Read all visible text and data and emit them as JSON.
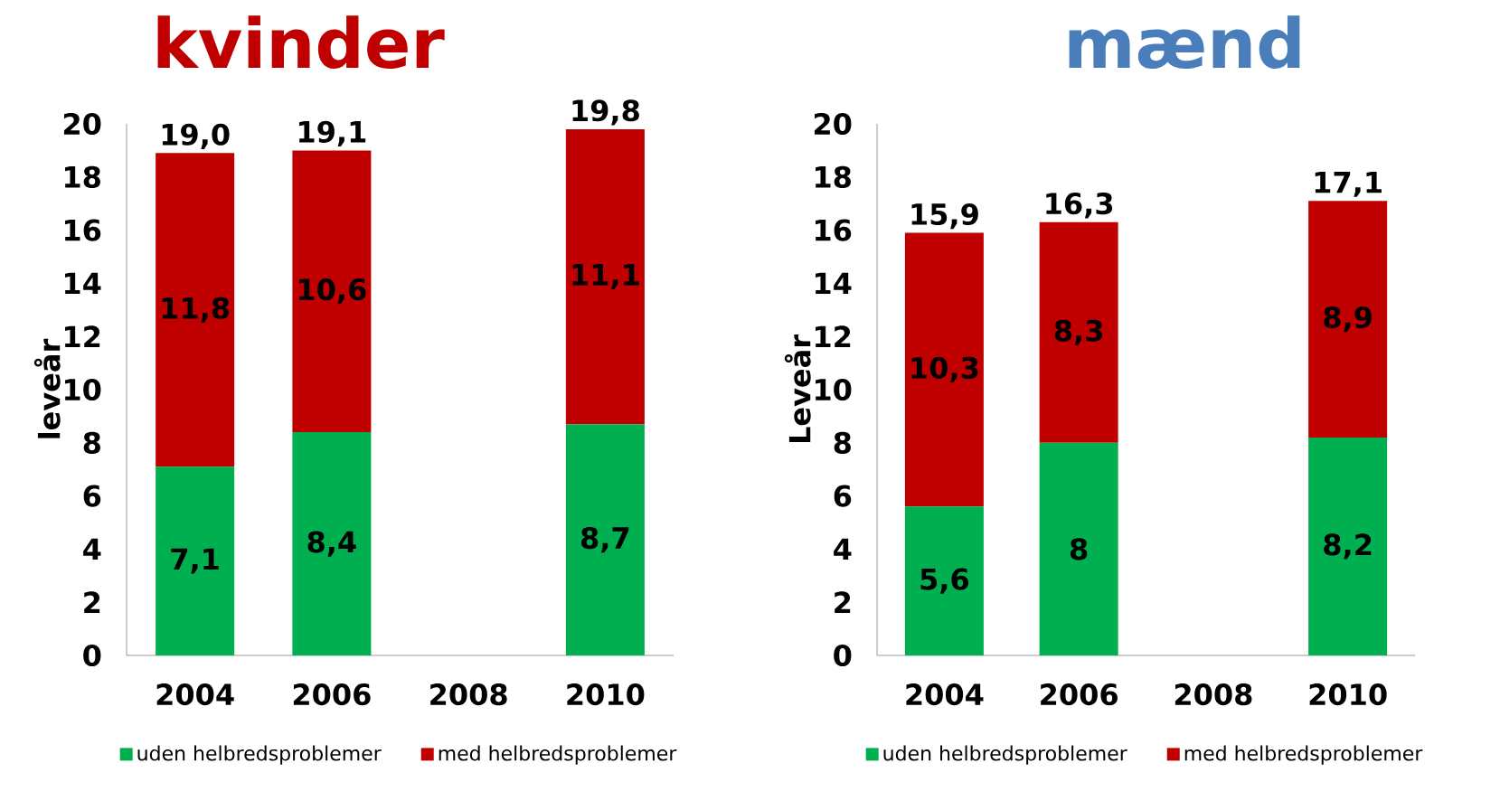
{
  "chart_data": [
    {
      "type": "bar",
      "title": "kvinder",
      "ylabel": "leveår",
      "categories": [
        "2004",
        "2006",
        "2008",
        "2010"
      ],
      "stacked": true,
      "legend": "bottom",
      "ylim": [
        0,
        20
      ],
      "yticks": [
        0,
        2,
        4,
        6,
        8,
        10,
        12,
        14,
        16,
        18,
        20
      ],
      "series": [
        {
          "name": "uden helbredsproblemer",
          "color": "#00b050",
          "values": [
            7.1,
            8.4,
            null,
            8.7
          ],
          "value_labels": [
            "7,1",
            "8,4",
            null,
            "8,7"
          ]
        },
        {
          "name": "med helbredsproblemer",
          "color": "#c00000",
          "values": [
            11.8,
            10.6,
            null,
            11.1
          ],
          "value_labels": [
            "11,8",
            "10,6",
            null,
            "11,1"
          ]
        }
      ],
      "totals": [
        "19,0",
        "19,1",
        null,
        "19,8"
      ]
    },
    {
      "type": "bar",
      "title": "mænd",
      "ylabel": "Leveår",
      "categories": [
        "2004",
        "2006",
        "2008",
        "2010"
      ],
      "stacked": true,
      "legend": "bottom",
      "ylim": [
        0,
        20
      ],
      "yticks": [
        0,
        2,
        4,
        6,
        8,
        10,
        12,
        14,
        16,
        18,
        20
      ],
      "series": [
        {
          "name": "uden helbredsproblemer",
          "color": "#00b050",
          "values": [
            5.6,
            8,
            null,
            8.2
          ],
          "value_labels": [
            "5,6",
            "8",
            null,
            "8,2"
          ]
        },
        {
          "name": "med helbredsproblemer",
          "color": "#c00000",
          "values": [
            10.3,
            8.3,
            null,
            8.9
          ],
          "value_labels": [
            "10,3",
            "8,3",
            null,
            "8,9"
          ]
        }
      ],
      "totals": [
        "15,9",
        "16,3",
        null,
        "17,1"
      ]
    }
  ]
}
